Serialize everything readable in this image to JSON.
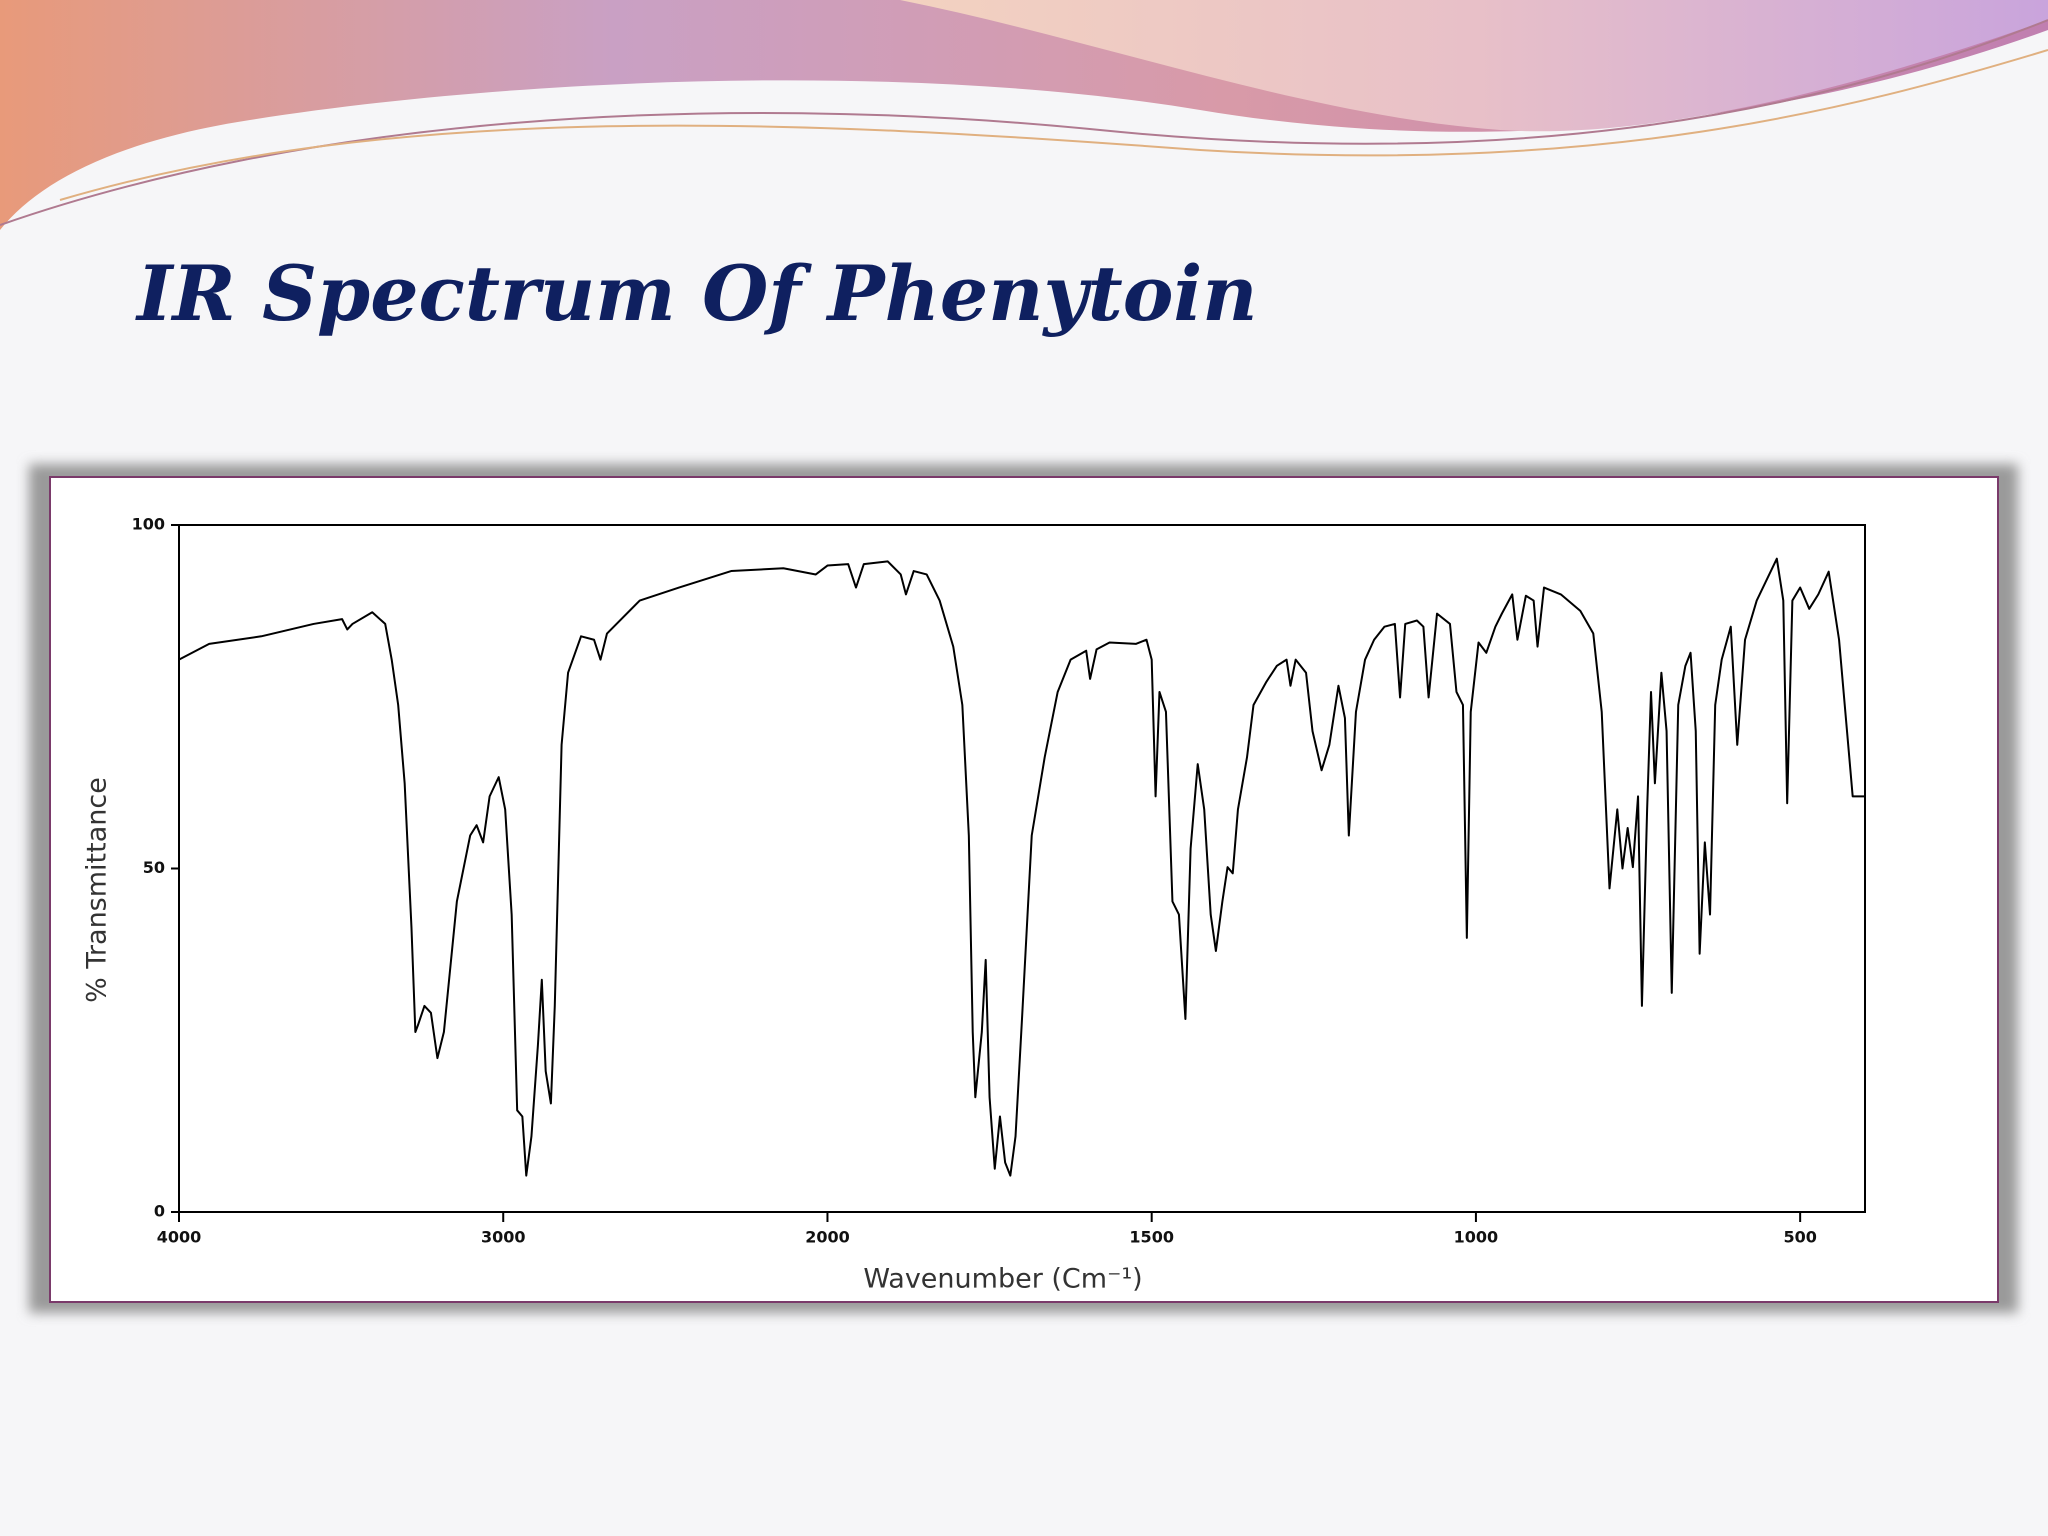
{
  "chart_data": {
    "type": "line",
    "title": "IR Spectrum Of Phenytoin",
    "x_label": "Wavenumber (Cm⁻¹)",
    "y_label": "% Transmittance",
    "color": "#000000",
    "xlim": [
      4000,
      400
    ],
    "xticks": [
      4000,
      3000,
      2000,
      1500,
      1000,
      500
    ],
    "ylim": [
      0,
      100
    ],
    "yticks": [
      0,
      50,
      100
    ],
    "grid": false,
    "x": [
      4000,
      3907,
      3746,
      3585,
      3497,
      3481,
      3465,
      3404,
      3364,
      3344,
      3324,
      3304,
      3283,
      3271,
      3263,
      3243,
      3223,
      3203,
      3183,
      3143,
      3102,
      3082,
      3062,
      3042,
      3014,
      2994,
      2974,
      2957,
      2941,
      2929,
      2913,
      2893,
      2881,
      2869,
      2853,
      2841,
      2820,
      2800,
      2760,
      2720,
      2700,
      2680,
      2579,
      2458,
      2297,
      2136,
      2036,
      2000,
      1968,
      1956,
      1944,
      1907,
      1887,
      1879,
      1867,
      1847,
      1827,
      1806,
      1792,
      1782,
      1776,
      1772,
      1762,
      1756,
      1750,
      1742,
      1734,
      1726,
      1718,
      1710,
      1700,
      1685,
      1665,
      1645,
      1625,
      1601,
      1595,
      1585,
      1565,
      1524,
      1508,
      1500,
      1494,
      1488,
      1478,
      1468,
      1458,
      1448,
      1440,
      1429,
      1419,
      1409,
      1401,
      1391,
      1383,
      1375,
      1367,
      1353,
      1343,
      1323,
      1307,
      1292,
      1286,
      1278,
      1262,
      1252,
      1238,
      1226,
      1212,
      1202,
      1196,
      1185,
      1171,
      1157,
      1141,
      1125,
      1117,
      1109,
      1091,
      1081,
      1073,
      1060,
      1040,
      1030,
      1020,
      1014,
      1008,
      996,
      984,
      970,
      960,
      944,
      936,
      923,
      911,
      905,
      895,
      869,
      839,
      819,
      806,
      794,
      782,
      774,
      766,
      758,
      750,
      744,
      736,
      730,
      724,
      714,
      706,
      698,
      688,
      677,
      669,
      661,
      655,
      647,
      639,
      631,
      621,
      607,
      597,
      585,
      567,
      536,
      526,
      520,
      512,
      500,
      486,
      472,
      456,
      440,
      419,
      400
    ],
    "values": [
      80.4,
      82.7,
      83.8,
      85.6,
      86.3,
      84.8,
      85.6,
      87.3,
      85.6,
      80.4,
      73.8,
      62.4,
      41.4,
      26.2,
      27.2,
      30,
      29,
      22.4,
      26.2,
      45.2,
      54.8,
      56.3,
      53.8,
      60.5,
      63.3,
      58.6,
      43.3,
      14.8,
      13.9,
      5.3,
      11,
      24.3,
      33.8,
      20.5,
      15.8,
      30,
      68,
      78.5,
      83.8,
      83.3,
      80.4,
      84.2,
      89,
      90.9,
      93.3,
      93.7,
      92.8,
      94.1,
      94.3,
      90.9,
      94.3,
      94.7,
      92.8,
      89.9,
      93.3,
      92.8,
      89,
      82.3,
      73.8,
      54.8,
      26.2,
      16.7,
      26.2,
      36.7,
      16.7,
      6.3,
      13.9,
      7.2,
      5.3,
      11,
      28.1,
      54.8,
      66.2,
      75.7,
      80.4,
      81.7,
      77.6,
      81.9,
      82.9,
      82.7,
      83.3,
      80.4,
      60.5,
      75.7,
      72.8,
      45.2,
      43.3,
      28.1,
      52.9,
      65.2,
      58.6,
      43.3,
      38,
      45.2,
      50.2,
      49.3,
      58.6,
      66.2,
      73.8,
      77.2,
      79.5,
      80.4,
      76.6,
      80.4,
      78.5,
      70,
      64.3,
      68,
      76.6,
      71.9,
      54.8,
      72.8,
      80.4,
      83.3,
      85.2,
      85.6,
      74.9,
      85.6,
      86.1,
      85.2,
      74.9,
      87.1,
      85.6,
      75.7,
      73.8,
      39.9,
      72.8,
      82.9,
      81.4,
      85.2,
      87.1,
      89.9,
      83.3,
      89.7,
      89,
      82.3,
      90.9,
      89.9,
      87.5,
      84.2,
      72.8,
      47.1,
      58.6,
      50,
      55.9,
      50.2,
      60.5,
      30,
      58.6,
      75.7,
      62.4,
      78.5,
      70,
      31.9,
      73.8,
      79.5,
      81.4,
      70,
      37.6,
      53.8,
      43.3,
      73.8,
      80.4,
      85.2,
      68,
      83.3,
      89,
      95.1,
      89,
      59.5,
      89,
      90.9,
      87.8,
      89.9,
      93.2,
      83.3,
      60.5,
      60.5
    ]
  }
}
